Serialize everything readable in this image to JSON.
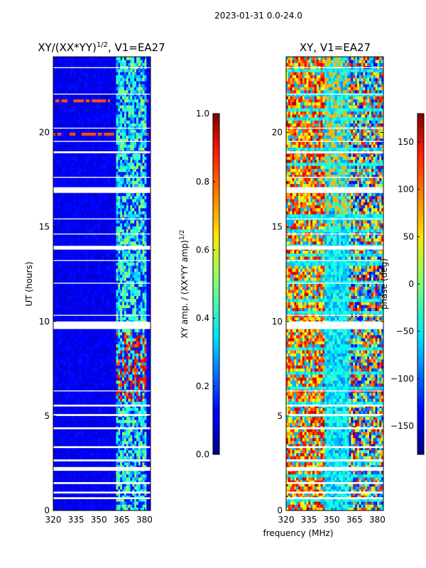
{
  "suptitle": "2023-01-31 0.0-24.0",
  "chart_data": [
    {
      "type": "heatmap",
      "title": "XY/(XX*YY)^{1/2}, V1=EA27",
      "title_main": "XY/(XX*YY)",
      "title_sup": "1/2",
      "title_rest": ", V1=EA27",
      "xlabel": "",
      "ylabel": "UT (hours)",
      "xlim": [
        320,
        384
      ],
      "ylim": [
        0,
        24
      ],
      "xticks": [
        320,
        335,
        350,
        365,
        380
      ],
      "yticks": [
        0,
        5,
        10,
        15,
        20
      ],
      "colorbar": {
        "label": "XY amp. / (XX*YY amp)^{1/2}",
        "label_main": "XY amp. / (XX*YY amp)",
        "label_sup": "1/2",
        "range": [
          0.0,
          1.0
        ],
        "ticks": [
          "0.0",
          "0.2",
          "0.4",
          "0.6",
          "0.8",
          "1.0"
        ],
        "tick_values": [
          0.0,
          0.2,
          0.4,
          0.6,
          0.8,
          1.0
        ]
      },
      "colormap": "jet"
    },
    {
      "type": "heatmap",
      "title": "XY, V1=EA27",
      "xlabel": "frequency (MHz)",
      "ylabel": "",
      "xlim": [
        320,
        384
      ],
      "ylim": [
        0,
        24
      ],
      "xticks": [
        320,
        335,
        350,
        365,
        380
      ],
      "yticks": [
        0,
        5,
        10,
        15,
        20
      ],
      "colorbar": {
        "label": "phase (deg)",
        "range": [
          -180,
          180
        ],
        "ticks": [
          "−150",
          "−100",
          "−50",
          "0",
          "50",
          "100",
          "150"
        ],
        "tick_values": [
          -150,
          -100,
          -50,
          0,
          50,
          100,
          150
        ]
      },
      "colormap": "jet"
    }
  ]
}
